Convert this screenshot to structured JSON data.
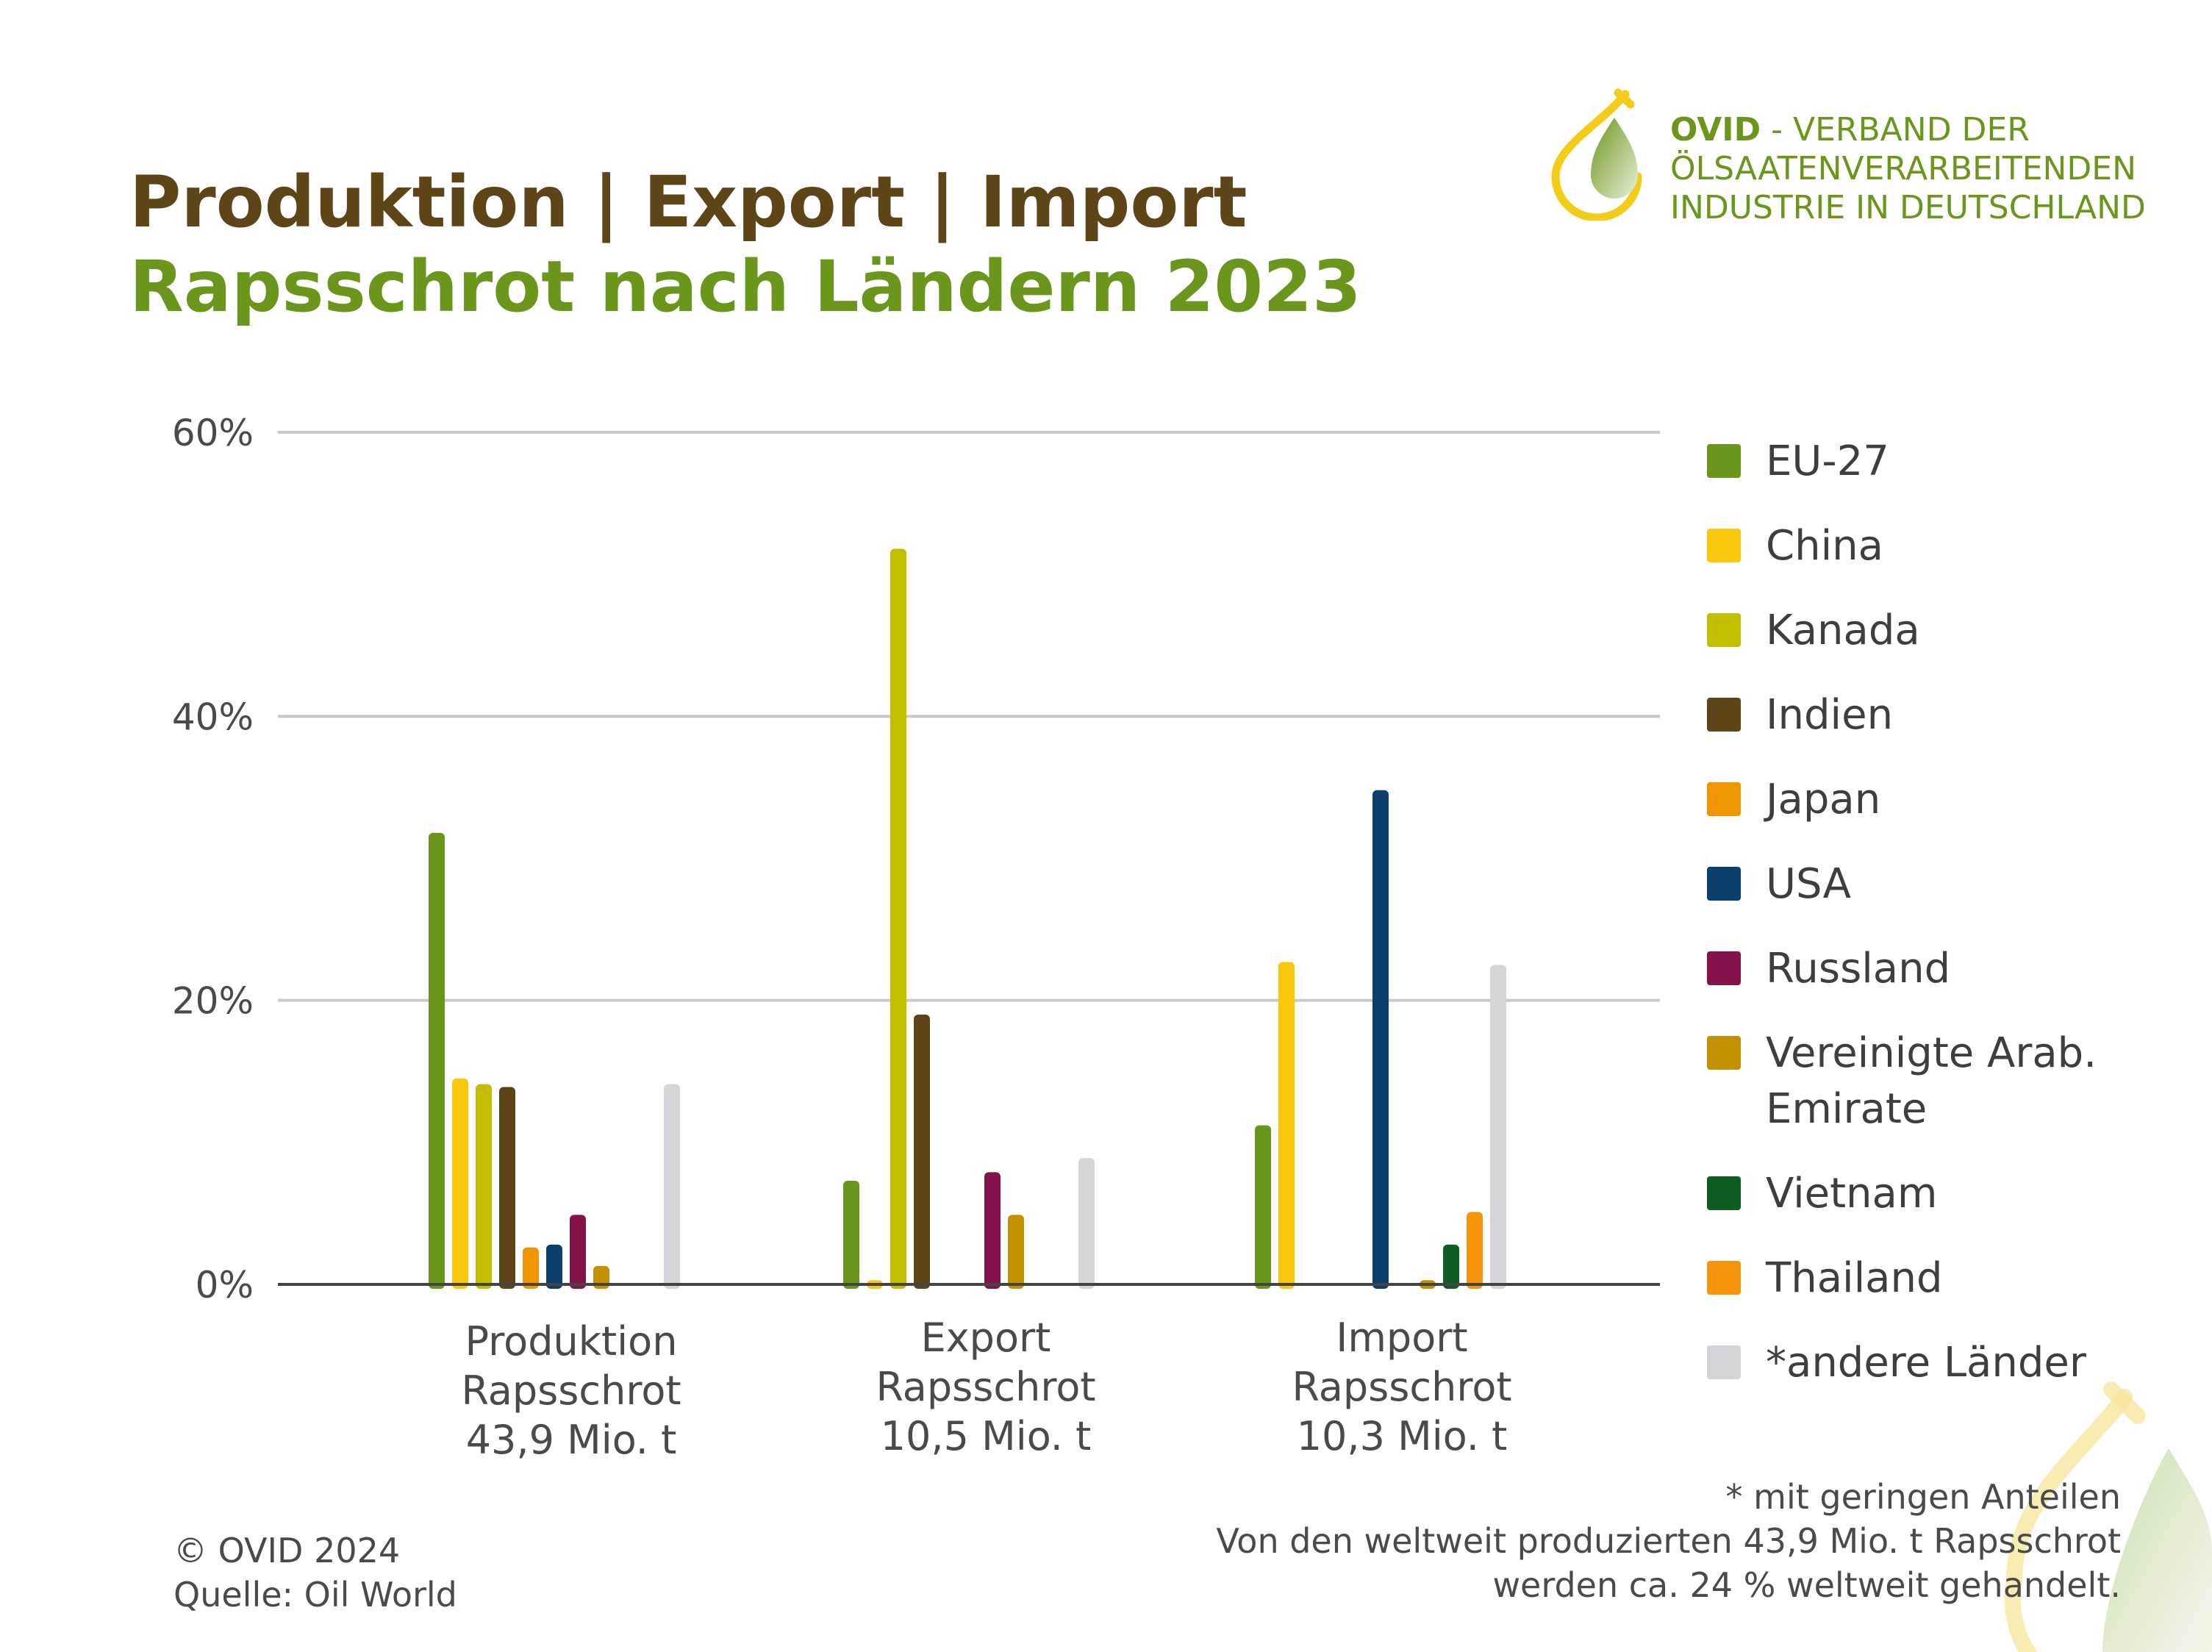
{
  "header": {
    "title": "Produktion | Export | Import",
    "subtitle": "Rapsschrot nach Ländern 2023"
  },
  "logo": {
    "brand": "OVID",
    "line1": " - VERBAND DER",
    "line2": "ÖLSAATENVERARBEITENDEN",
    "line3": "INDUSTRIE IN DEUTSCHLAND",
    "colors": {
      "yellow": "#f3cc1a",
      "green": "#6a961c"
    }
  },
  "chart_data": {
    "type": "bar",
    "unit": "%",
    "ylim": [
      0,
      60
    ],
    "yticks": [
      0,
      20,
      40,
      60
    ],
    "ytick_labels": [
      "0%",
      "20%",
      "40%",
      "60%"
    ],
    "grid": true,
    "legend_position": "right",
    "categories": [
      [
        "Produktion",
        "Rapsschrot",
        "43,9 Mio. t"
      ],
      [
        "Export",
        "Rapsschrot",
        "10,5 Mio. t"
      ],
      [
        "Import",
        "Rapsschrot",
        "10,3 Mio. t"
      ]
    ],
    "series": [
      {
        "name": "EU-27",
        "color": "#6a961c",
        "values": [
          31.8,
          7.3,
          11.2
        ]
      },
      {
        "name": "China",
        "color": "#f9c80e",
        "values": [
          14.5,
          0.3,
          22.7
        ]
      },
      {
        "name": "Kanada",
        "color": "#c4be00",
        "values": [
          14.1,
          51.8,
          0
        ]
      },
      {
        "name": "Indien",
        "color": "#5e4517",
        "values": [
          13.9,
          19.0,
          0
        ]
      },
      {
        "name": "Japan",
        "color": "#f09500",
        "values": [
          2.6,
          0,
          0
        ]
      },
      {
        "name": "USA",
        "color": "#0b3f6e",
        "values": [
          2.8,
          0,
          34.8
        ]
      },
      {
        "name": "Russland",
        "color": "#85124a",
        "values": [
          4.9,
          7.9,
          0
        ]
      },
      {
        "name": "Vereinigte Arab. Emirate",
        "label_lines": [
          "Vereinigte Arab.",
          "Emirate"
        ],
        "color": "#c39000",
        "values": [
          1.3,
          4.9,
          0.3
        ]
      },
      {
        "name": "Vietnam",
        "color": "#0f5e21",
        "values": [
          0,
          0,
          2.8
        ]
      },
      {
        "name": "Thailand",
        "color": "#f5960a",
        "values": [
          0,
          0,
          5.1
        ]
      },
      {
        "name": "*andere Länder",
        "color": "#d3d5d9",
        "values": [
          14.1,
          8.9,
          22.5
        ]
      }
    ]
  },
  "notes": {
    "line1": "* mit geringen Anteilen",
    "line2": "Von den weltweit produzierten 43,9 Mio. t Rapsschrot",
    "line3": "werden ca. 24 % weltweit gehandelt."
  },
  "credits": {
    "copyright": "© OVID 2024",
    "source": "Quelle: Oil World"
  }
}
